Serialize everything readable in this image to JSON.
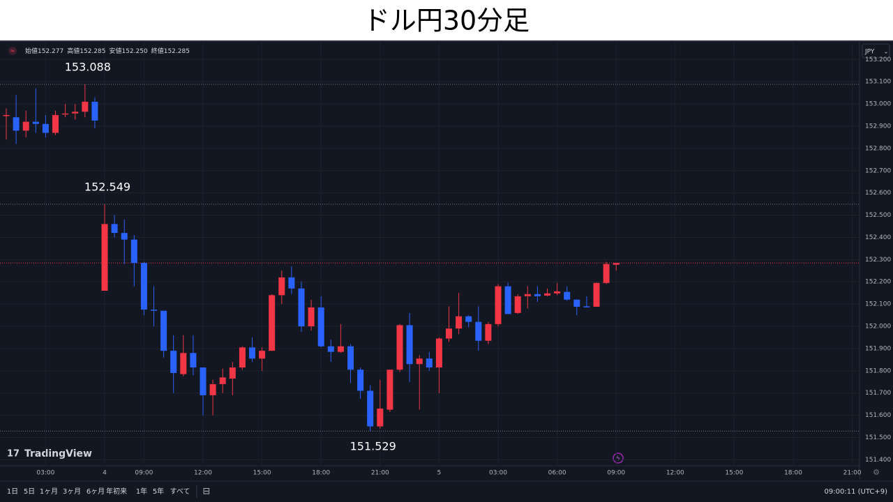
{
  "chart_data": {
    "type": "candlestick",
    "title": "ドル円30分足",
    "x": [
      null,
      null,
      null,
      null,
      "03:00",
      null,
      null,
      null,
      null,
      null,
      "4",
      null,
      null,
      null,
      "09:00",
      null,
      null,
      null,
      null,
      null,
      "12:00",
      null,
      null,
      null,
      null,
      null,
      "15:00",
      null,
      null,
      null,
      null,
      null,
      "18:00",
      null,
      null,
      null,
      null,
      null,
      "21:00",
      null,
      null,
      null,
      null,
      null,
      "5",
      null,
      null,
      null,
      null,
      null,
      "03:00",
      null,
      null,
      null,
      null,
      null,
      "06:00",
      null,
      null,
      null,
      null,
      null,
      "09:00",
      null,
      null,
      null,
      null,
      null,
      "12:00",
      null,
      null,
      null,
      null,
      null,
      "15:00",
      null,
      null,
      null,
      null,
      null,
      "18:00",
      null,
      null,
      null,
      null,
      null,
      "21:00"
    ],
    "open": [
      152.95,
      152.94,
      152.88,
      152.92,
      152.91,
      152.87,
      152.955,
      152.957,
      152.965,
      153.01,
      152.16,
      152.46,
      152.42,
      152.39,
      152.285,
      152.075,
      152.07,
      151.89,
      151.785,
      151.88,
      151.815,
      151.69,
      151.74,
      151.765,
      151.815,
      151.905,
      151.855,
      151.89,
      152.14,
      152.22,
      152.17,
      152.0,
      152.085,
      151.91,
      151.885,
      151.91,
      151.805,
      151.71,
      151.55,
      151.625,
      151.805,
      152.005,
      151.83,
      151.855,
      151.815,
      151.945,
      151.99,
      152.045,
      152.02,
      151.935,
      152.01,
      152.18,
      152.06,
      152.135,
      152.145,
      152.138,
      152.148,
      152.155,
      152.12,
      152.09,
      152.088,
      152.195,
      152.277,
      null,
      null,
      null,
      null,
      null,
      null,
      null,
      null,
      null,
      null,
      null,
      null,
      null,
      null,
      null,
      null,
      null,
      null,
      null,
      null,
      null,
      null,
      null,
      null
    ],
    "high": [
      152.98,
      153.04,
      152.97,
      153.07,
      152.95,
      152.97,
      153.0,
      153.0,
      153.088,
      153.03,
      152.549,
      152.5,
      152.48,
      152.41,
      152.29,
      152.18,
      152.07,
      151.96,
      151.96,
      151.96,
      151.815,
      151.76,
      151.81,
      151.84,
      151.91,
      151.95,
      151.905,
      152.145,
      152.25,
      152.27,
      152.2,
      152.12,
      152.135,
      151.94,
      152.01,
      151.92,
      151.815,
      151.735,
      151.76,
      151.805,
      152.01,
      152.06,
      151.87,
      151.885,
      151.95,
      152.09,
      152.15,
      152.05,
      152.09,
      152.02,
      152.19,
      152.197,
      152.145,
      152.18,
      152.18,
      152.17,
      152.195,
      152.18,
      152.12,
      152.135,
      152.197,
      152.29,
      152.285,
      null,
      null,
      null,
      null,
      null,
      null,
      null,
      null,
      null,
      null,
      null,
      null,
      null,
      null,
      null,
      null,
      null,
      null,
      null,
      null,
      null,
      null,
      null,
      null
    ],
    "low": [
      152.84,
      152.82,
      152.85,
      152.87,
      152.85,
      152.86,
      152.94,
      152.93,
      152.94,
      152.89,
      152.16,
      152.4,
      152.28,
      152.18,
      152.05,
      152.0,
      151.86,
      151.7,
      151.775,
      151.78,
      151.6,
      151.6,
      151.7,
      151.69,
      151.805,
      151.84,
      151.8,
      151.89,
      152.1,
      152.145,
      151.975,
      151.98,
      151.905,
      151.84,
      151.88,
      151.745,
      151.675,
      151.529,
      151.54,
      151.615,
      151.795,
      151.75,
      151.625,
      151.8,
      151.7,
      151.93,
      151.965,
      151.995,
      151.89,
      151.92,
      152.0,
      152.055,
      152.055,
      152.08,
      152.11,
      152.135,
      152.14,
      152.115,
      152.05,
      152.085,
      152.088,
      152.19,
      152.25,
      null,
      null,
      null,
      null,
      null,
      null,
      null,
      null,
      null,
      null,
      null,
      null,
      null,
      null,
      null,
      null,
      null,
      null,
      null,
      null,
      null,
      null,
      null,
      null
    ],
    "close": [
      152.95,
      152.88,
      152.92,
      152.91,
      152.87,
      152.95,
      152.957,
      152.965,
      153.01,
      152.925,
      152.46,
      152.42,
      152.39,
      152.285,
      152.075,
      152.07,
      151.89,
      151.79,
      151.88,
      151.815,
      151.69,
      151.74,
      151.77,
      151.815,
      151.905,
      151.855,
      151.89,
      152.14,
      152.22,
      152.17,
      152.0,
      152.085,
      151.91,
      151.885,
      151.91,
      151.805,
      151.71,
      151.55,
      151.63,
      151.805,
      152.005,
      151.83,
      151.855,
      151.815,
      151.945,
      151.99,
      152.045,
      152.02,
      151.935,
      152.01,
      152.18,
      152.055,
      152.135,
      152.145,
      152.135,
      152.148,
      152.157,
      152.12,
      152.088,
      152.088,
      152.195,
      152.28,
      152.285,
      null,
      null,
      null,
      null,
      null,
      null,
      null,
      null,
      null,
      null,
      null,
      null,
      null,
      null,
      null,
      null,
      null,
      null,
      null,
      null,
      null,
      null,
      null,
      null
    ],
    "up_color": "#f23645",
    "down_color": "#2962ff",
    "ylim": [
      151.373,
      153.273
    ],
    "yticks": [
      {
        "value": 151.4,
        "label": "151.400"
      },
      {
        "value": 151.5,
        "label": "151.500"
      },
      {
        "value": 151.6,
        "label": "151.600"
      },
      {
        "value": 151.7,
        "label": "151.700"
      },
      {
        "value": 151.8,
        "label": "151.800"
      },
      {
        "value": 151.9,
        "label": "151.900"
      },
      {
        "value": 152.0,
        "label": "152.000"
      },
      {
        "value": 152.1,
        "label": "152.100"
      },
      {
        "value": 152.2,
        "label": "152.200"
      },
      {
        "value": 152.3,
        "label": "152.300"
      },
      {
        "value": 152.4,
        "label": "152.400"
      },
      {
        "value": 152.5,
        "label": "152.500"
      },
      {
        "value": 152.6,
        "label": "152.600"
      },
      {
        "value": 152.7,
        "label": "152.700"
      },
      {
        "value": 152.8,
        "label": "152.800"
      },
      {
        "value": 152.9,
        "label": "152.900"
      },
      {
        "value": 153.0,
        "label": "153.000"
      },
      {
        "value": 153.1,
        "label": "153.100"
      },
      {
        "value": 153.2,
        "label": "153.200"
      }
    ],
    "grid": true,
    "annotations": [
      153.088,
      152.549,
      151.529
    ]
  },
  "ohlc_legend": [
    {
      "label": "始値",
      "value": "152.277"
    },
    {
      "label": "高値",
      "value": "152.285"
    },
    {
      "label": "安値",
      "value": "152.250"
    },
    {
      "label": "終値",
      "value": "152.285"
    }
  ],
  "currency": "JPY",
  "brand": "TradingView",
  "toolbar": {
    "ranges": [
      "1日",
      "5日",
      "1ヶ月",
      "3ヶ月",
      "6ヶ月",
      "年初来",
      "1年",
      "5年",
      "すべて"
    ],
    "clock": "09:00:11 (UTC+9)"
  }
}
